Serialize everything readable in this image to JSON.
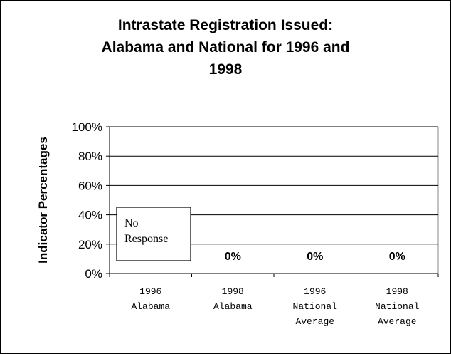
{
  "chart_data": {
    "type": "bar",
    "title": [
      "Intrastate Registration Issued:",
      "Alabama and National for 1996 and",
      "1998"
    ],
    "xlabel": "",
    "ylabel": "Indicator Percentages",
    "ylim": [
      0,
      100
    ],
    "yticks": [
      "0%",
      "20%",
      "40%",
      "60%",
      "80%",
      "100%"
    ],
    "categories": [
      [
        "1996",
        "Alabama"
      ],
      [
        "1998",
        "Alabama"
      ],
      [
        "1996",
        "National",
        "Average"
      ],
      [
        "1998",
        "National",
        "Average"
      ]
    ],
    "values": [
      null,
      0,
      0,
      0
    ],
    "data_labels": [
      "",
      "0%",
      "0%",
      "0%"
    ],
    "annotation": [
      "No",
      "Response"
    ],
    "grid": true,
    "legend": "none"
  }
}
